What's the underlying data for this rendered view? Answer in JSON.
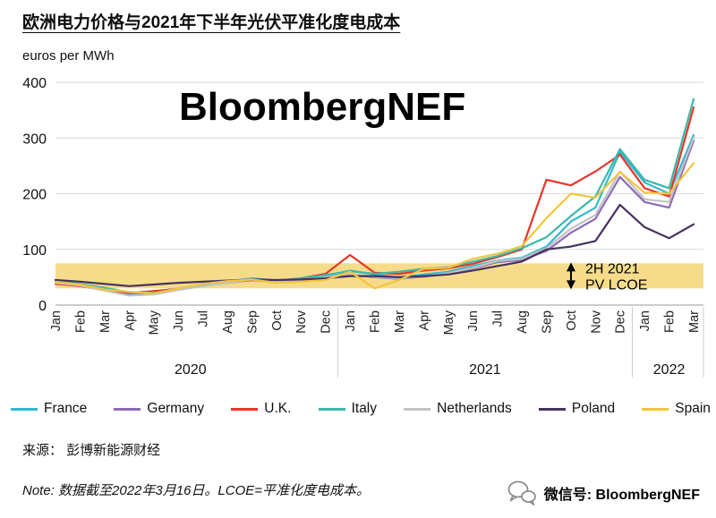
{
  "header": {
    "title": "欧洲电力价格与2021年下半年光伏平准化度电成本",
    "y_axis_label": "euros per MWh",
    "watermark": "BloombergNEF"
  },
  "chart_data": {
    "type": "line",
    "x": [
      "Jan",
      "Feb",
      "Mar",
      "Apr",
      "May",
      "Jun",
      "Jul",
      "Aug",
      "Sep",
      "Oct",
      "Nov",
      "Dec",
      "Jan",
      "Feb",
      "Mar",
      "Apr",
      "May",
      "Jun",
      "Jul",
      "Aug",
      "Sep",
      "Oct",
      "Nov",
      "Dec",
      "Jan",
      "Feb",
      "Mar"
    ],
    "year_groups": [
      {
        "label": "2020",
        "months": 12
      },
      {
        "label": "2021",
        "months": 12
      },
      {
        "label": "2022",
        "months": 3
      }
    ],
    "ylim": [
      0,
      400
    ],
    "yticks": [
      0,
      100,
      200,
      300,
      400
    ],
    "unit": "euros per MWh",
    "band": {
      "low": 30,
      "high": 75,
      "color": "#F6DC8A",
      "label": [
        "2H 2021",
        "PV LCOE"
      ]
    },
    "series": [
      {
        "name": "France",
        "color": "#33B8D0",
        "values": [
          45,
          36,
          30,
          20,
          24,
          30,
          36,
          42,
          48,
          44,
          46,
          52,
          62,
          55,
          50,
          55,
          60,
          70,
          80,
          85,
          105,
          150,
          175,
          275,
          220,
          200,
          305
        ]
      },
      {
        "name": "Germany",
        "color": "#8C6BB8",
        "values": [
          41,
          34,
          27,
          18,
          21,
          28,
          35,
          40,
          45,
          41,
          44,
          49,
          55,
          50,
          47,
          51,
          56,
          66,
          77,
          81,
          97,
          130,
          155,
          230,
          185,
          175,
          295
        ]
      },
      {
        "name": "U.K.",
        "color": "#E8342A",
        "values": [
          38,
          34,
          28,
          22,
          25,
          29,
          35,
          41,
          45,
          43,
          48,
          56,
          90,
          58,
          56,
          62,
          66,
          74,
          86,
          100,
          225,
          215,
          240,
          270,
          210,
          195,
          355
        ]
      },
      {
        "name": "Italy",
        "color": "#3BB8A9",
        "values": [
          43,
          38,
          31,
          23,
          22,
          28,
          37,
          42,
          47,
          44,
          48,
          54,
          61,
          56,
          60,
          65,
          68,
          78,
          88,
          102,
          122,
          160,
          195,
          280,
          225,
          210,
          370
        ]
      },
      {
        "name": "Netherlands",
        "color": "#C3C3C3",
        "values": [
          40,
          35,
          26,
          17,
          19,
          27,
          34,
          40,
          46,
          42,
          45,
          50,
          56,
          51,
          48,
          52,
          57,
          67,
          79,
          83,
          102,
          137,
          162,
          240,
          190,
          185,
          300
        ]
      },
      {
        "name": "Poland",
        "color": "#46325F",
        "values": [
          45,
          42,
          38,
          34,
          37,
          40,
          42,
          44,
          46,
          45,
          46,
          48,
          52,
          52,
          50,
          52,
          55,
          62,
          70,
          78,
          100,
          105,
          115,
          180,
          140,
          120,
          145
        ]
      },
      {
        "name": "Spain",
        "color": "#F3C53D",
        "values": [
          42,
          37,
          28,
          24,
          21,
          30,
          38,
          43,
          46,
          40,
          42,
          45,
          60,
          30,
          45,
          65,
          67,
          83,
          92,
          106,
          156,
          200,
          193,
          239,
          202,
          200,
          255
        ]
      }
    ]
  },
  "footer": {
    "source": "来源： 彭博新能源财经",
    "note": "Note: 数据截至2022年3月16日。LCOE=平准化度电成本。",
    "wechat_label": "微信号: BloombergNEF"
  }
}
